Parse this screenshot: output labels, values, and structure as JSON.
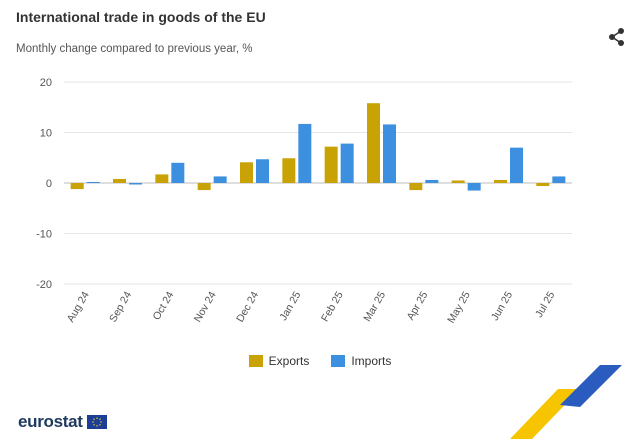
{
  "header": {
    "title": "International trade in goods of the EU",
    "subtitle": "Monthly change compared to previous year, %"
  },
  "share_icon": "share-icon",
  "legend": {
    "exports": "Exports",
    "imports": "Imports"
  },
  "logo": {
    "text": "eurostat"
  },
  "colors": {
    "exports": "#c9a205",
    "imports": "#3d8fdf"
  },
  "chart_data": {
    "type": "bar",
    "title": "International trade in goods of the EU",
    "subtitle": "Monthly change compared to previous year, %",
    "xlabel": "",
    "ylabel": "",
    "categories": [
      "Aug 24",
      "Sep 24",
      "Oct 24",
      "Nov 24",
      "Dec 24",
      "Jan 25",
      "Feb 25",
      "Mar 25",
      "Apr 25",
      "May 25",
      "Jun 25",
      "Jul 25"
    ],
    "series": [
      {
        "name": "Exports",
        "values": [
          -1.2,
          0.8,
          1.7,
          -1.4,
          4.1,
          4.9,
          7.2,
          15.8,
          -1.4,
          0.5,
          0.6,
          -0.6
        ]
      },
      {
        "name": "Imports",
        "values": [
          0.2,
          -0.3,
          4.0,
          1.3,
          4.7,
          11.7,
          7.8,
          11.6,
          0.6,
          -1.5,
          7.0,
          1.3
        ]
      }
    ],
    "ylim": [
      -20,
      20
    ],
    "yticks": [
      -20,
      -10,
      0,
      10,
      20
    ],
    "grid": true,
    "legend_position": "bottom"
  }
}
